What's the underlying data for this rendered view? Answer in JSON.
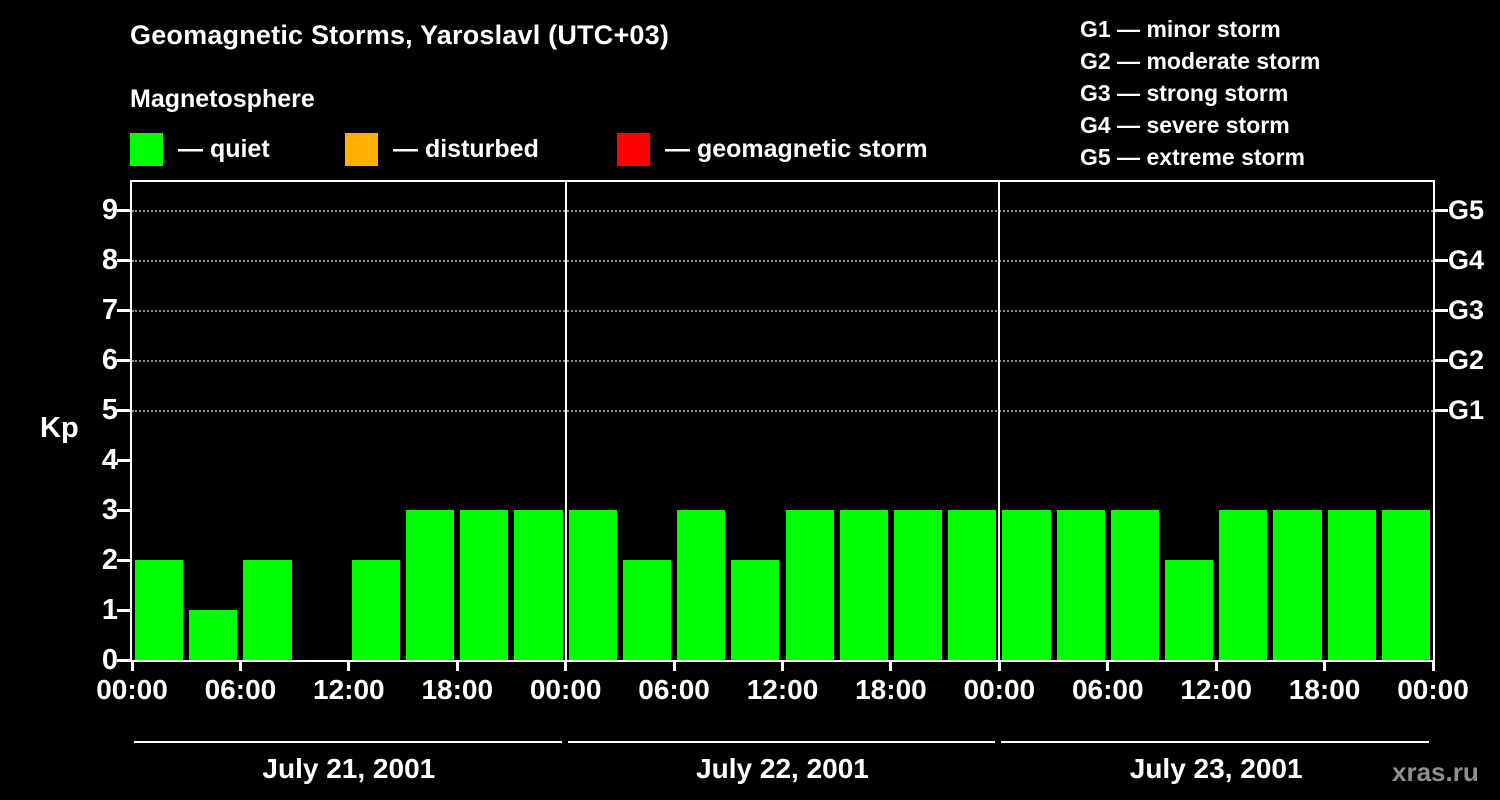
{
  "chart_data": {
    "type": "bar",
    "title": "Geomagnetic Storms, Yaroslavl (UTC+03)",
    "subtitle": "Magnetosphere",
    "ylabel": "Kp",
    "ylim": [
      0,
      9.56
    ],
    "y_ticks": [
      0,
      1,
      2,
      3,
      4,
      5,
      6,
      7,
      8,
      9
    ],
    "grid_levels": [
      5,
      6,
      7,
      8,
      9
    ],
    "grid_style": "dotted",
    "legend_position": "top",
    "bar_color": "#00ff00",
    "bar_interval_hours": 3,
    "kp_legend": [
      {
        "label": "— quiet",
        "color": "#00ff00"
      },
      {
        "label": "— disturbed",
        "color": "#ffb000"
      },
      {
        "label": "— geomagnetic storm",
        "color": "#ff0000"
      }
    ],
    "storm_scale": [
      "G1 — minor storm",
      "G2 — moderate storm",
      "G3 — strong storm",
      "G4 — severe storm",
      "G5 — extreme storm"
    ],
    "right_axis": [
      {
        "label": "G5",
        "kp": 9
      },
      {
        "label": "G4",
        "kp": 8
      },
      {
        "label": "G3",
        "kp": 7
      },
      {
        "label": "G2",
        "kp": 6
      },
      {
        "label": "G1",
        "kp": 5
      }
    ],
    "x_tick_labels": [
      "00:00",
      "06:00",
      "12:00",
      "18:00",
      "00:00",
      "06:00",
      "12:00",
      "18:00",
      "00:00",
      "06:00",
      "12:00",
      "18:00",
      "00:00"
    ],
    "days": [
      {
        "date": "July 21, 2001",
        "values": [
          2,
          1,
          2,
          0,
          2,
          3,
          3,
          3
        ]
      },
      {
        "date": "July 22, 2001",
        "values": [
          3,
          2,
          3,
          2,
          3,
          3,
          3,
          3
        ]
      },
      {
        "date": "July 23, 2001",
        "values": [
          3,
          3,
          3,
          2,
          3,
          3,
          3,
          3
        ]
      }
    ]
  },
  "footer": {
    "watermark": "xras.ru"
  }
}
